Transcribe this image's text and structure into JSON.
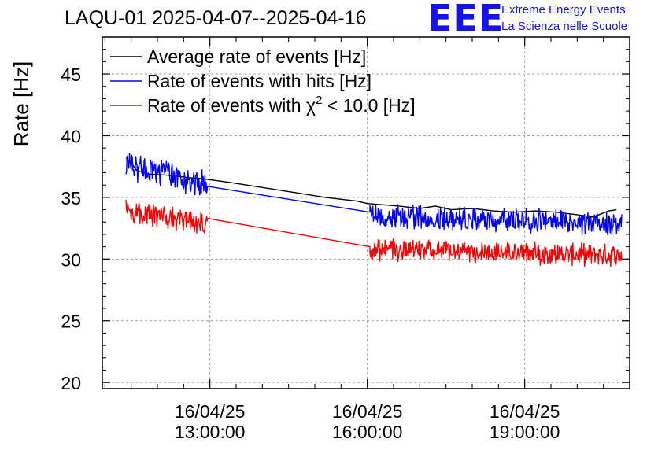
{
  "title": "LAQU-01 2025-04-07--2025-04-16",
  "logo": {
    "mark": "EEE",
    "line1": "Extreme Energy Events",
    "line2": "La Scienza nelle Scuole",
    "color": "#1414e6"
  },
  "chart_data": {
    "type": "line",
    "title": "LAQU-01 2025-04-07--2025-04-16",
    "xlabel": "",
    "ylabel": "Rate [Hz]",
    "ylim": [
      19.5,
      48
    ],
    "xlim_hours": [
      10.95,
      21.0
    ],
    "yticks": [
      20,
      25,
      30,
      35,
      40,
      45
    ],
    "xticks": [
      {
        "hour": 13,
        "date": "16/04/25",
        "time": "13:00:00"
      },
      {
        "hour": 16,
        "date": "16/04/25",
        "time": "16:00:00"
      },
      {
        "hour": 19,
        "date": "16/04/25",
        "time": "19:00:00"
      }
    ],
    "grid": true,
    "legend_position": "top-left",
    "legend": {
      "avg": "Average rate of events [Hz]",
      "hits": "Rate of events with hits [Hz]",
      "chi_prefix": "Rate of events with ",
      "chi_symbol": "χ",
      "chi_sup": "2",
      "chi_suffix": " < 10.0 [Hz]"
    },
    "series": [
      {
        "name": "Average rate of events [Hz]",
        "color": "#000000",
        "points": [
          [
            11.4,
            38.2
          ],
          [
            11.5,
            37.8
          ],
          [
            11.6,
            37.2
          ],
          [
            11.8,
            36.9
          ],
          [
            12.2,
            36.8
          ],
          [
            12.6,
            36.6
          ],
          [
            12.9,
            36.5
          ],
          [
            13.4,
            36.2
          ],
          [
            14.0,
            35.8
          ],
          [
            14.6,
            35.4
          ],
          [
            15.2,
            35.0
          ],
          [
            15.8,
            34.7
          ],
          [
            16.0,
            34.5
          ],
          [
            16.3,
            34.4
          ],
          [
            16.6,
            34.3
          ],
          [
            17.0,
            34.1
          ],
          [
            17.3,
            34.3
          ],
          [
            17.6,
            34.0
          ],
          [
            18.0,
            34.1
          ],
          [
            18.4,
            33.9
          ],
          [
            18.8,
            33.8
          ],
          [
            19.2,
            33.9
          ],
          [
            19.6,
            33.8
          ],
          [
            20.0,
            33.6
          ],
          [
            20.3,
            33.4
          ],
          [
            20.6,
            33.9
          ],
          [
            20.75,
            34.0
          ]
        ]
      },
      {
        "name": "Rate of events with hits [Hz]",
        "color": "#0000ff",
        "segments": [
          {
            "start": 11.4,
            "end": 12.95,
            "base_start": 37.7,
            "base_end": 36.0,
            "amp": 1.3
          },
          {
            "start": 12.95,
            "end": 16.05,
            "base_start": 35.9,
            "base_end": 33.8,
            "amp": 0
          },
          {
            "start": 16.05,
            "end": 20.85,
            "base_start": 33.5,
            "base_end": 32.9,
            "amp": 1.1
          }
        ]
      },
      {
        "name": "Rate of events with χ2 < 10.0 [Hz]",
        "color": "#ff0000",
        "segments": [
          {
            "start": 11.4,
            "end": 12.95,
            "base_start": 34.0,
            "base_end": 32.8,
            "amp": 1.1
          },
          {
            "start": 12.95,
            "end": 16.05,
            "base_start": 33.3,
            "base_end": 31.0,
            "amp": 0
          },
          {
            "start": 16.05,
            "end": 20.85,
            "base_start": 30.8,
            "base_end": 30.3,
            "amp": 1.0
          }
        ]
      }
    ]
  }
}
